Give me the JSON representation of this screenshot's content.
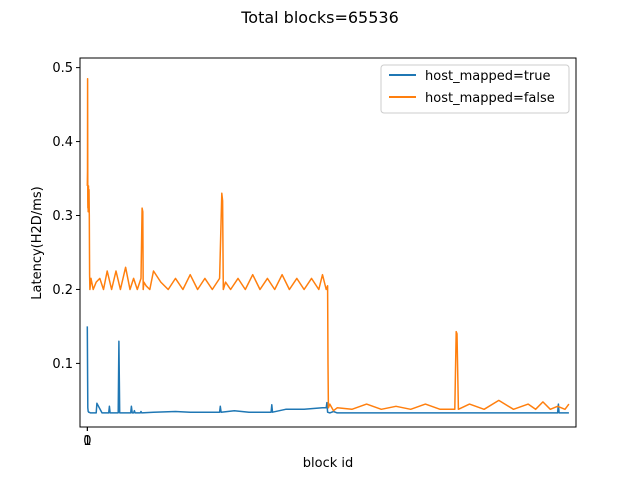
{
  "chart_data": {
    "type": "line",
    "title": "Total blocks=65536",
    "xlabel": "block id",
    "ylabel": "Latency(H2D/ms)",
    "xlim": [
      -1000,
      66500
    ],
    "ylim": [
      0.014,
      0.513
    ],
    "x_ticks": [
      0,
      1
    ],
    "x_tick_labels": [
      "0",
      "1"
    ],
    "y_ticks": [
      0.1,
      0.2,
      0.3,
      0.4,
      0.5
    ],
    "y_tick_labels": [
      "0.1",
      "0.2",
      "0.3",
      "0.4",
      "0.5"
    ],
    "grid": false,
    "legend_position": "top-right",
    "colors": {
      "host_mapped_true": "#1f77b4",
      "host_mapped_false": "#ff7f0e"
    },
    "series": [
      {
        "name": "host_mapped=true",
        "color": "#1f77b4",
        "x": [
          0,
          60,
          120,
          180,
          260,
          400,
          700,
          1200,
          1300,
          2000,
          2900,
          3000,
          3100,
          4200,
          4300,
          4400,
          5000,
          5900,
          6000,
          6100,
          6300,
          6400,
          6500,
          7200,
          7300,
          7400,
          9000,
          12000,
          14000,
          16500,
          18000,
          18100,
          18200,
          20000,
          21000,
          22000,
          25000,
          25100,
          25200,
          27000,
          29500,
          32000,
          32500,
          32600,
          32700,
          33000,
          33500,
          34000,
          40000,
          43000,
          45000,
          50000,
          60000,
          64000,
          64100,
          64200,
          65536
        ],
        "y": [
          0.15,
          0.04,
          0.035,
          0.034,
          0.034,
          0.033,
          0.033,
          0.033,
          0.046,
          0.033,
          0.033,
          0.042,
          0.033,
          0.033,
          0.13,
          0.033,
          0.033,
          0.033,
          0.042,
          0.033,
          0.033,
          0.036,
          0.033,
          0.033,
          0.035,
          0.033,
          0.034,
          0.035,
          0.034,
          0.034,
          0.034,
          0.042,
          0.034,
          0.036,
          0.035,
          0.034,
          0.034,
          0.044,
          0.034,
          0.038,
          0.038,
          0.04,
          0.04,
          0.047,
          0.034,
          0.033,
          0.035,
          0.033,
          0.033,
          0.033,
          0.033,
          0.033,
          0.033,
          0.033,
          0.045,
          0.033,
          0.033
        ]
      },
      {
        "name": "host_mapped=false",
        "color": "#ff7f0e",
        "x": [
          0,
          20,
          40,
          60,
          80,
          100,
          120,
          140,
          160,
          180,
          200,
          230,
          260,
          300,
          350,
          400,
          500,
          800,
          1200,
          1700,
          2200,
          2700,
          3300,
          3900,
          4500,
          5200,
          5800,
          6300,
          6800,
          7300,
          7450,
          7550,
          7600,
          7700,
          8000,
          8500,
          9000,
          10000,
          11000,
          12000,
          13000,
          14000,
          15000,
          16000,
          17000,
          18000,
          18300,
          18400,
          18500,
          18800,
          19500,
          20500,
          21500,
          22500,
          23500,
          24500,
          25500,
          26500,
          27500,
          28500,
          29500,
          30500,
          31500,
          32000,
          32500,
          32700,
          32750,
          32800,
          33000,
          33500,
          34000,
          36000,
          38000,
          40000,
          42000,
          44000,
          46000,
          48000,
          50000,
          50200,
          50300,
          50500,
          52000,
          54000,
          56000,
          58000,
          60000,
          61000,
          62000,
          63000,
          64000,
          65000,
          65536
        ],
        "y": [
          0.34,
          0.36,
          0.485,
          0.32,
          0.31,
          0.335,
          0.305,
          0.32,
          0.34,
          0.31,
          0.32,
          0.335,
          0.3,
          0.22,
          0.2,
          0.205,
          0.215,
          0.2,
          0.21,
          0.215,
          0.2,
          0.225,
          0.2,
          0.225,
          0.2,
          0.23,
          0.2,
          0.215,
          0.2,
          0.215,
          0.31,
          0.305,
          0.2,
          0.21,
          0.205,
          0.2,
          0.225,
          0.21,
          0.2,
          0.215,
          0.2,
          0.22,
          0.2,
          0.215,
          0.2,
          0.215,
          0.33,
          0.32,
          0.2,
          0.21,
          0.2,
          0.215,
          0.2,
          0.22,
          0.2,
          0.215,
          0.2,
          0.22,
          0.2,
          0.215,
          0.2,
          0.215,
          0.2,
          0.22,
          0.2,
          0.205,
          0.1,
          0.04,
          0.045,
          0.036,
          0.04,
          0.038,
          0.045,
          0.038,
          0.042,
          0.038,
          0.045,
          0.038,
          0.038,
          0.143,
          0.14,
          0.038,
          0.045,
          0.038,
          0.05,
          0.038,
          0.045,
          0.038,
          0.048,
          0.038,
          0.042,
          0.038,
          0.045
        ]
      }
    ]
  }
}
